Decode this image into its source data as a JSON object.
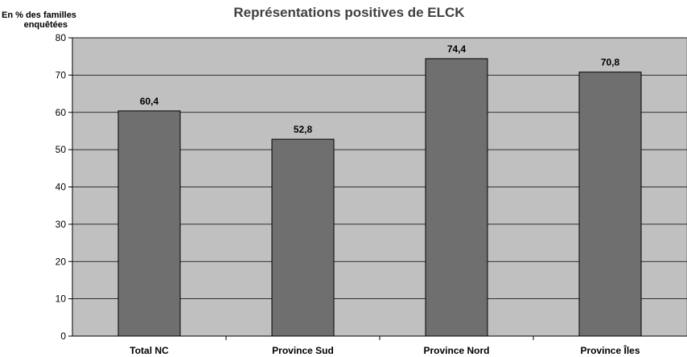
{
  "chart_data": {
    "type": "bar",
    "title": "Représentations positives de ELCK",
    "ylabel": [
      "En % des familles",
      "enquêtées"
    ],
    "xlabel": "",
    "categories": [
      "Total NC",
      "Province Sud",
      "Province Nord",
      "Province Îles"
    ],
    "values": [
      60.4,
      52.8,
      74.4,
      70.8
    ],
    "data_labels": [
      "60,4",
      "52,8",
      "74,4",
      "70,8"
    ],
    "ylim": [
      0,
      80
    ],
    "yticks": [
      0,
      10,
      20,
      30,
      40,
      50,
      60,
      70,
      80
    ],
    "grid": true,
    "legend": "none",
    "colors": {
      "plot_background": "#c0c0c0",
      "bar_fill": "#6f6f6f",
      "bar_stroke": "#000000",
      "gridline": "#000000",
      "title": "#404040"
    }
  }
}
